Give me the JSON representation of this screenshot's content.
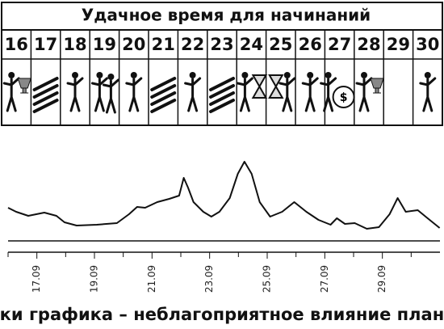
{
  "calendar": {
    "title": "Удачное время для начинаний",
    "days": [
      "16",
      "17",
      "18",
      "19",
      "20",
      "21",
      "22",
      "23",
      "24",
      "25",
      "26",
      "27",
      "28",
      "29",
      "30"
    ],
    "money_symbol": "$"
  },
  "chart_data": {
    "type": "line",
    "caption": "Пики графика – неблагоприятное влияние планет",
    "x": [
      16.0,
      16.28,
      16.7,
      17.26,
      17.68,
      17.96,
      18.38,
      19.08,
      19.78,
      20.2,
      20.48,
      20.76,
      21.18,
      21.6,
      21.94,
      22.1,
      22.25,
      22.44,
      22.78,
      23.06,
      23.34,
      23.7,
      23.98,
      24.21,
      24.46,
      24.74,
      25.1,
      25.52,
      25.94,
      26.36,
      26.78,
      27.2,
      27.42,
      27.7,
      28.04,
      28.46,
      28.88,
      29.25,
      29.53,
      29.81,
      30.23,
      30.57,
      30.99
    ],
    "series": [
      {
        "color": "#111111",
        "values": [
          41,
          36,
          31,
          35,
          31,
          23,
          19,
          20,
          22,
          33,
          42,
          41,
          48,
          52,
          56,
          78,
          66,
          48,
          36,
          30,
          36,
          53,
          83,
          98,
          83,
          48,
          30,
          36,
          48,
          36,
          26,
          20,
          28,
          21,
          22,
          15,
          17,
          33,
          53,
          36,
          38,
          28,
          16
        ]
      }
    ],
    "xlim": [
      16,
      31
    ],
    "ylim": [
      0,
      100
    ],
    "xticks": [
      {
        "value": 17,
        "label": "17.09"
      },
      {
        "value": 19,
        "label": "19.09"
      },
      {
        "value": 21,
        "label": "21.09"
      },
      {
        "value": 23,
        "label": "23.09"
      },
      {
        "value": 25,
        "label": "25.09"
      },
      {
        "value": 27,
        "label": "27.09"
      },
      {
        "value": 29,
        "label": "29.09"
      }
    ],
    "xminorticks": [
      16,
      18,
      20,
      22,
      24,
      26,
      28,
      30
    ]
  }
}
